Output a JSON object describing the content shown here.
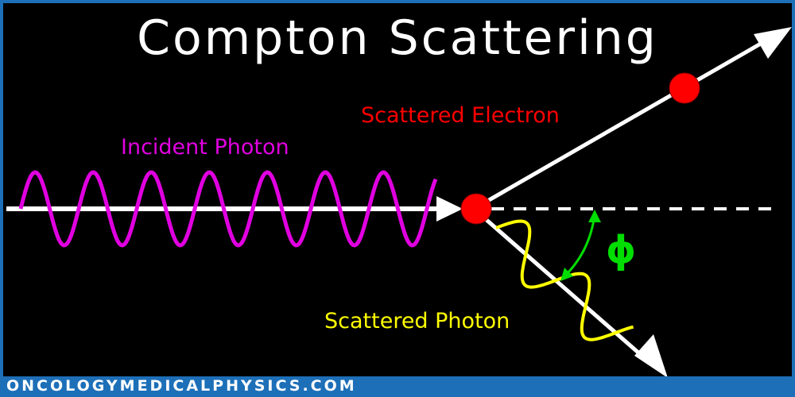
{
  "title": "Compton Scattering",
  "labels": {
    "scattered_electron": "Scattered Electron",
    "incident_photon": "Incident Photon",
    "scattered_photon": "Scattered Photon",
    "angle": "ϕ"
  },
  "footer": "ONCOLOGYMEDICALPHYSICS.COM",
  "colors": {
    "background": "#000000",
    "border": "#1d6fb8",
    "title": "#ffffff",
    "electron": "#ff0000",
    "incident_photon": "#e000e0",
    "scattered_photon": "#ffff00",
    "angle": "#00dd00",
    "paths": "#ffffff"
  }
}
